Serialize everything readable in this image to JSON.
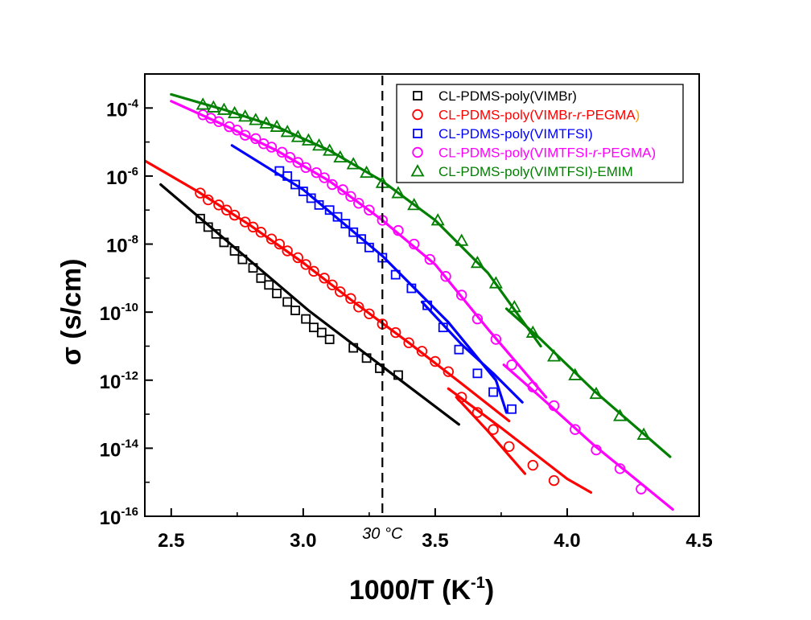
{
  "chart_data": {
    "type": "scatter",
    "xlabel": "1000/T (K",
    "xlabel_sup": "-1",
    "xlabel_close": ")",
    "ylabel": "σ (s/cm)",
    "xlim": [
      2.4,
      4.5
    ],
    "ylim": [
      -16,
      -3.0
    ],
    "yscale": "log",
    "x_ticks": [
      {
        "value": 2.5,
        "label": "2.5"
      },
      {
        "value": 3.0,
        "label": "3.0"
      },
      {
        "value": 3.5,
        "label": "3.5"
      },
      {
        "value": 4.0,
        "label": "4.0"
      },
      {
        "value": 4.5,
        "label": "4.5"
      }
    ],
    "y_ticks": [
      {
        "exp": -4,
        "base": "10",
        "sup": "-4"
      },
      {
        "exp": -6,
        "base": "10",
        "sup": "-6"
      },
      {
        "exp": -8,
        "base": "10",
        "sup": "-8"
      },
      {
        "exp": -10,
        "base": "10",
        "sup": "-10"
      },
      {
        "exp": -12,
        "base": "10",
        "sup": "-12"
      },
      {
        "exp": -14,
        "base": "10",
        "sup": "-14"
      },
      {
        "exp": -16,
        "base": "10",
        "sup": "-16"
      }
    ],
    "annotation": {
      "text": "30 °C",
      "x": 3.3
    },
    "legend_position": "top-right",
    "series": [
      {
        "name_parts": [
          {
            "t": "CL-PDMS-poly(VIMBr)",
            "c": "#000000"
          }
        ],
        "color": "#000000",
        "marker": "square",
        "points": [
          [
            2.61,
            -7.25
          ],
          [
            2.64,
            -7.5
          ],
          [
            2.67,
            -7.7
          ],
          [
            2.7,
            -7.95
          ],
          [
            2.74,
            -8.2
          ],
          [
            2.77,
            -8.45
          ],
          [
            2.81,
            -8.7
          ],
          [
            2.84,
            -9.0
          ],
          [
            2.87,
            -9.2
          ],
          [
            2.9,
            -9.45
          ],
          [
            2.94,
            -9.7
          ],
          [
            2.97,
            -9.95
          ],
          [
            3.01,
            -10.2
          ],
          [
            3.04,
            -10.45
          ],
          [
            3.07,
            -10.6
          ],
          [
            3.1,
            -10.8
          ],
          [
            3.19,
            -11.05
          ],
          [
            3.24,
            -11.35
          ],
          [
            3.29,
            -11.65
          ],
          [
            3.36,
            -11.85
          ]
        ],
        "fits": [
          [
            [
              2.46,
              -6.25
            ],
            [
              2.74,
              -8.1
            ],
            [
              3.02,
              -9.95
            ],
            [
              3.3,
              -11.6
            ],
            [
              3.59,
              -13.3
            ]
          ]
        ]
      },
      {
        "name_parts": [
          {
            "t": "CL-PDMS-poly(",
            "c": "#ff0000"
          },
          {
            "t": "VIMBr-",
            "c": "#ff0000"
          },
          {
            "t": "r",
            "c": "#ff0000",
            "i": true
          },
          {
            "t": "-PEGMA",
            "c": "#ff0000"
          },
          {
            "t": ")",
            "c": "#ff9900"
          }
        ],
        "color": "#ff0000",
        "marker": "circle",
        "points": [
          [
            2.61,
            -6.5
          ],
          [
            2.64,
            -6.7
          ],
          [
            2.68,
            -6.85
          ],
          [
            2.71,
            -7.0
          ],
          [
            2.74,
            -7.15
          ],
          [
            2.78,
            -7.35
          ],
          [
            2.81,
            -7.5
          ],
          [
            2.84,
            -7.65
          ],
          [
            2.88,
            -7.85
          ],
          [
            2.91,
            -8.0
          ],
          [
            2.94,
            -8.2
          ],
          [
            2.98,
            -8.4
          ],
          [
            3.01,
            -8.6
          ],
          [
            3.04,
            -8.8
          ],
          [
            3.08,
            -9.0
          ],
          [
            3.11,
            -9.2
          ],
          [
            3.14,
            -9.4
          ],
          [
            3.18,
            -9.6
          ],
          [
            3.21,
            -9.85
          ],
          [
            3.25,
            -10.05
          ],
          [
            3.3,
            -10.35
          ],
          [
            3.35,
            -10.6
          ],
          [
            3.4,
            -10.9
          ],
          [
            3.45,
            -11.15
          ],
          [
            3.5,
            -11.45
          ],
          [
            3.55,
            -11.75
          ],
          [
            3.6,
            -12.5
          ],
          [
            3.66,
            -12.95
          ],
          [
            3.72,
            -13.45
          ],
          [
            3.78,
            -13.95
          ],
          [
            3.87,
            -14.5
          ],
          [
            3.95,
            -14.95
          ]
        ],
        "fits": [
          [
            [
              2.4,
              -5.55
            ],
            [
              2.6,
              -6.45
            ],
            [
              2.8,
              -7.45
            ],
            [
              3.0,
              -8.55
            ],
            [
              3.2,
              -9.75
            ],
            [
              3.4,
              -10.9
            ],
            [
              3.6,
              -12.1
            ],
            [
              3.78,
              -13.2
            ]
          ],
          [
            [
              3.55,
              -12.25
            ],
            [
              3.75,
              -13.4
            ],
            [
              4.0,
              -14.9
            ],
            [
              4.09,
              -15.3
            ]
          ],
          [
            [
              3.58,
              -12.5
            ],
            [
              3.7,
              -13.5
            ],
            [
              3.84,
              -14.75
            ]
          ]
        ]
      },
      {
        "name_parts": [
          {
            "t": "CL-PDMS-poly(VIMTFSI)",
            "c": "#0000ff"
          }
        ],
        "color": "#0000ff",
        "marker": "square",
        "points": [
          [
            2.91,
            -5.85
          ],
          [
            2.94,
            -6.0
          ],
          [
            2.97,
            -6.25
          ],
          [
            3.0,
            -6.45
          ],
          [
            3.03,
            -6.65
          ],
          [
            3.06,
            -6.85
          ],
          [
            3.1,
            -7.0
          ],
          [
            3.13,
            -7.2
          ],
          [
            3.16,
            -7.4
          ],
          [
            3.19,
            -7.65
          ],
          [
            3.22,
            -7.85
          ],
          [
            3.25,
            -8.1
          ],
          [
            3.3,
            -8.4
          ],
          [
            3.35,
            -8.9
          ],
          [
            3.41,
            -9.3
          ],
          [
            3.47,
            -9.8
          ],
          [
            3.53,
            -10.45
          ],
          [
            3.59,
            -11.1
          ],
          [
            3.66,
            -11.8
          ],
          [
            3.72,
            -12.35
          ],
          [
            3.79,
            -12.85
          ]
        ],
        "fits": [
          [
            [
              2.73,
              -5.1
            ],
            [
              3.0,
              -6.4
            ],
            [
              3.3,
              -8.35
            ],
            [
              3.55,
              -10.3
            ],
            [
              3.73,
              -12.0
            ],
            [
              3.77,
              -12.95
            ]
          ],
          [
            [
              3.45,
              -9.7
            ],
            [
              3.6,
              -10.95
            ],
            [
              3.72,
              -11.8
            ],
            [
              3.83,
              -12.65
            ]
          ]
        ]
      },
      {
        "name_parts": [
          {
            "t": "CL-PDMS-poly(",
            "c": "#ff00ff"
          },
          {
            "t": "VIMTFSI-",
            "c": "#ff00ff"
          },
          {
            "t": "r",
            "c": "#ff00ff",
            "i": true
          },
          {
            "t": "-PEGMA)",
            "c": "#ff00ff"
          }
        ],
        "color": "#ff00ff",
        "marker": "circle",
        "points": [
          [
            2.62,
            -4.2
          ],
          [
            2.65,
            -4.3
          ],
          [
            2.68,
            -4.4
          ],
          [
            2.72,
            -4.55
          ],
          [
            2.75,
            -4.65
          ],
          [
            2.78,
            -4.8
          ],
          [
            2.82,
            -4.9
          ],
          [
            2.85,
            -5.05
          ],
          [
            2.88,
            -5.15
          ],
          [
            2.92,
            -5.3
          ],
          [
            2.95,
            -5.45
          ],
          [
            2.98,
            -5.6
          ],
          [
            3.01,
            -5.75
          ],
          [
            3.05,
            -5.9
          ],
          [
            3.08,
            -6.05
          ],
          [
            3.11,
            -6.25
          ],
          [
            3.15,
            -6.4
          ],
          [
            3.18,
            -6.6
          ],
          [
            3.21,
            -6.8
          ],
          [
            3.25,
            -7.0
          ],
          [
            3.3,
            -7.3
          ],
          [
            3.36,
            -7.6
          ],
          [
            3.42,
            -8.0
          ],
          [
            3.48,
            -8.45
          ],
          [
            3.54,
            -8.95
          ],
          [
            3.6,
            -9.5
          ],
          [
            3.66,
            -10.2
          ],
          [
            3.73,
            -10.8
          ],
          [
            3.79,
            -11.55
          ],
          [
            3.87,
            -12.2
          ],
          [
            3.95,
            -12.75
          ],
          [
            4.03,
            -13.45
          ],
          [
            4.11,
            -14.05
          ],
          [
            4.2,
            -14.6
          ],
          [
            4.28,
            -15.2
          ]
        ],
        "fits": [
          [
            [
              2.5,
              -3.8
            ],
            [
              2.7,
              -4.5
            ],
            [
              2.9,
              -5.25
            ],
            [
              3.1,
              -6.15
            ],
            [
              3.3,
              -7.3
            ],
            [
              3.5,
              -8.6
            ],
            [
              3.7,
              -10.5
            ],
            [
              3.92,
              -12.5
            ]
          ],
          [
            [
              3.76,
              -11.55
            ],
            [
              3.9,
              -12.5
            ],
            [
              4.1,
              -13.9
            ],
            [
              4.4,
              -15.8
            ]
          ]
        ]
      },
      {
        "name_parts": [
          {
            "t": "CL-PDMS-poly(VIMTFSI)-EMIM",
            "c": "#007f00"
          }
        ],
        "color": "#007f00",
        "marker": "triangle",
        "points": [
          [
            2.62,
            -3.9
          ],
          [
            2.66,
            -3.98
          ],
          [
            2.7,
            -4.05
          ],
          [
            2.74,
            -4.15
          ],
          [
            2.78,
            -4.25
          ],
          [
            2.82,
            -4.35
          ],
          [
            2.86,
            -4.45
          ],
          [
            2.9,
            -4.55
          ],
          [
            2.94,
            -4.7
          ],
          [
            2.98,
            -4.85
          ],
          [
            3.02,
            -4.95
          ],
          [
            3.06,
            -5.1
          ],
          [
            3.1,
            -5.25
          ],
          [
            3.14,
            -5.45
          ],
          [
            3.19,
            -5.65
          ],
          [
            3.24,
            -5.9
          ],
          [
            3.3,
            -6.2
          ],
          [
            3.36,
            -6.5
          ],
          [
            3.42,
            -6.85
          ],
          [
            3.51,
            -7.3
          ],
          [
            3.6,
            -7.9
          ],
          [
            3.66,
            -8.55
          ],
          [
            3.73,
            -9.15
          ],
          [
            3.8,
            -9.85
          ],
          [
            3.87,
            -10.6
          ],
          [
            3.95,
            -11.3
          ],
          [
            4.03,
            -11.85
          ],
          [
            4.11,
            -12.4
          ],
          [
            4.2,
            -13.05
          ],
          [
            4.29,
            -13.6
          ]
        ],
        "fits": [
          [
            [
              2.5,
              -3.6
            ],
            [
              2.7,
              -4.05
            ],
            [
              2.9,
              -4.55
            ],
            [
              3.1,
              -5.25
            ],
            [
              3.3,
              -6.15
            ],
            [
              3.5,
              -7.3
            ],
            [
              3.7,
              -8.85
            ],
            [
              3.9,
              -11.0
            ]
          ],
          [
            [
              3.77,
              -9.9
            ],
            [
              3.9,
              -10.8
            ],
            [
              4.1,
              -12.3
            ],
            [
              4.39,
              -14.25
            ]
          ]
        ]
      }
    ]
  }
}
